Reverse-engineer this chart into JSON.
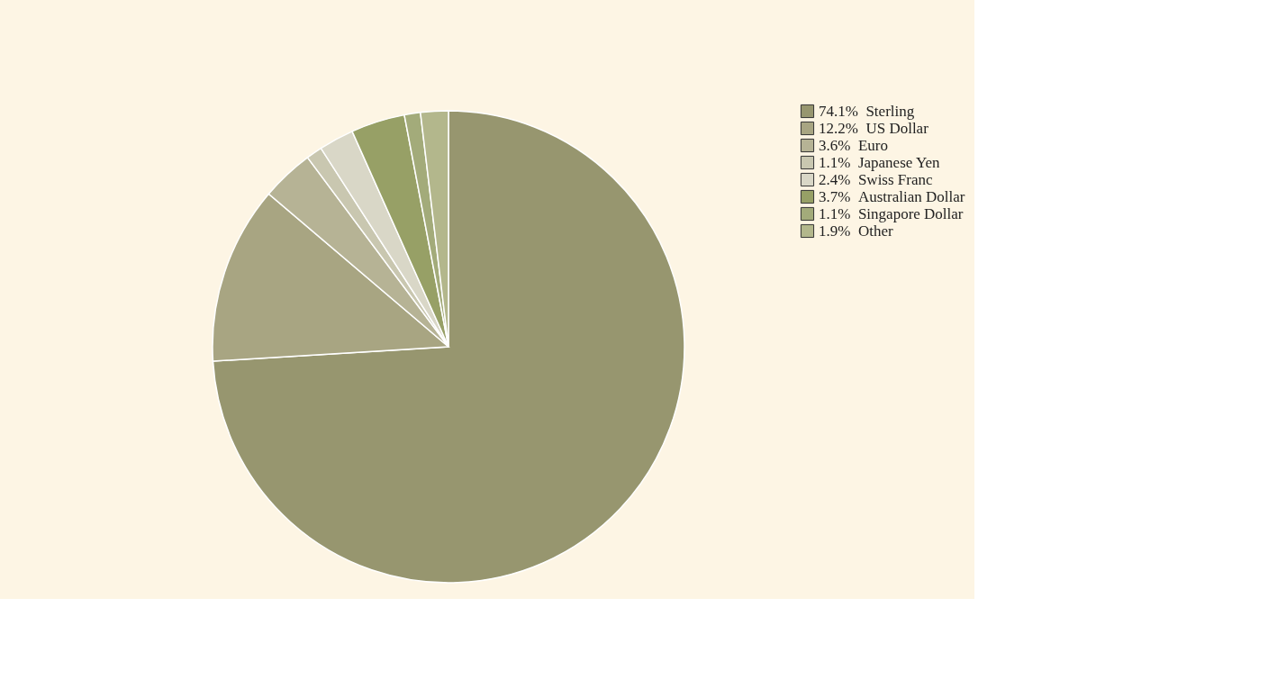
{
  "chart_data": {
    "type": "pie",
    "categories": [
      "Sterling",
      "US Dollar",
      "Euro",
      "Japanese Yen",
      "Swiss Franc",
      "Australian Dollar",
      "Singapore Dollar",
      "Other"
    ],
    "values": [
      74.1,
      12.2,
      3.6,
      1.1,
      2.4,
      3.7,
      1.1,
      1.9
    ],
    "value_labels": [
      "74.1%",
      "12.2%",
      "3.6%",
      "1.1%",
      "2.4%",
      "3.7%",
      "1.1%",
      "1.9%"
    ],
    "colors": [
      "#97966f",
      "#a8a582",
      "#b6b395",
      "#c9c7b0",
      "#d9d7c7",
      "#97a066",
      "#a3ab7a",
      "#b3b78c"
    ],
    "legend": "right"
  }
}
